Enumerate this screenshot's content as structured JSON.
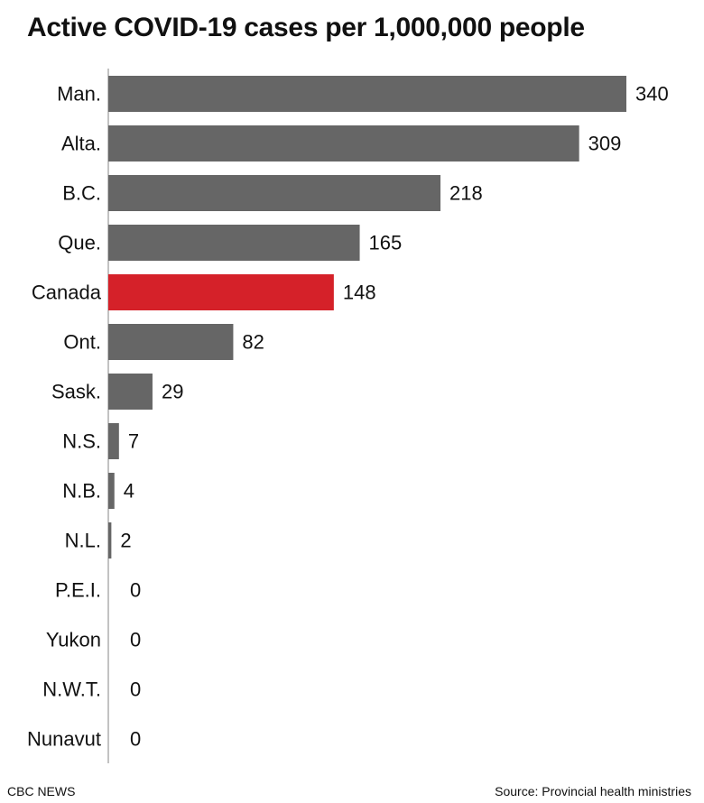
{
  "chart_data": {
    "type": "bar",
    "orientation": "horizontal",
    "title": "Active COVID-19 cases per 1,000,000 people",
    "categories": [
      "Man.",
      "Alta.",
      "B.C.",
      "Que.",
      "Canada",
      "Ont.",
      "Sask.",
      "N.S.",
      "N.B.",
      "N.L.",
      "P.E.I.",
      "Yukon",
      "N.W.T.",
      "Nunavut"
    ],
    "values": [
      340,
      309,
      218,
      165,
      148,
      82,
      29,
      7,
      4,
      2,
      0,
      0,
      0,
      0
    ],
    "data_labels": [
      "340",
      "309",
      "218",
      "165",
      "148",
      "82",
      "29",
      "7",
      "4",
      "2",
      "0",
      "0",
      "0",
      "0"
    ],
    "highlight_category": "Canada",
    "xlim": [
      0,
      340
    ],
    "grid": false,
    "legend": "none",
    "colors": {
      "bar": "#666666",
      "highlight": "#d52129",
      "axis": "#999999"
    }
  },
  "footer": {
    "credit": "CBC NEWS",
    "source": "Source: Provincial health ministries"
  }
}
